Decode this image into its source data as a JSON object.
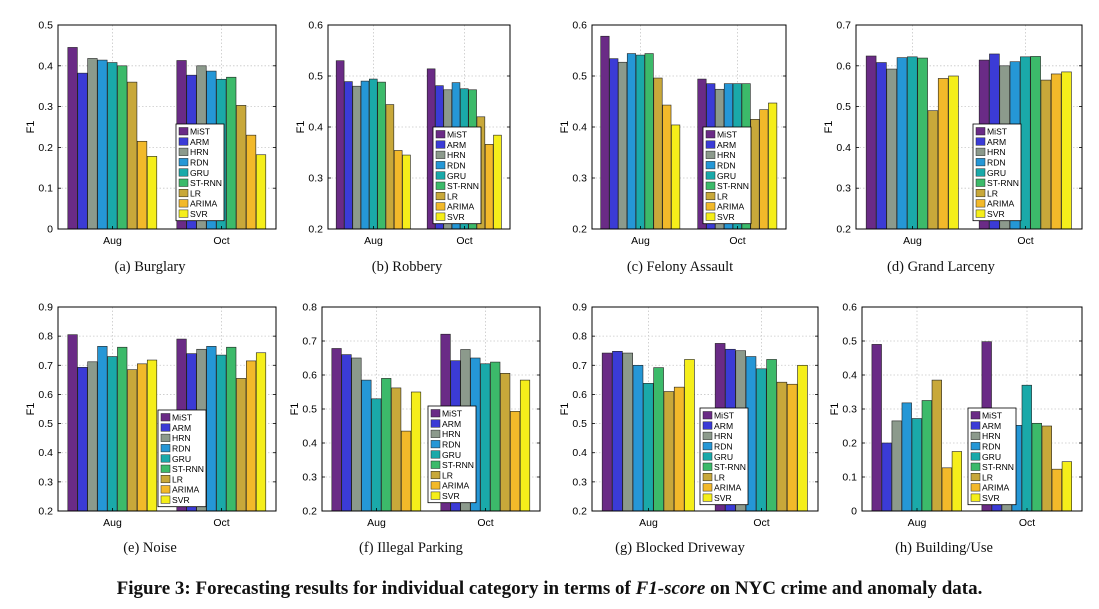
{
  "figure": {
    "caption_prefix": "Figure 3: Forecasting results for individual category in terms of ",
    "caption_metric": "F1-score",
    "caption_suffix": " on NYC crime and anomaly data."
  },
  "legend": [
    "MiST",
    "ARM",
    "HRN",
    "RDN",
    "GRU",
    "ST-RNN",
    "LR",
    "ARIMA",
    "SVR"
  ],
  "colors": [
    "#6a2b86",
    "#3b3bd6",
    "#8c9a8c",
    "#2597d6",
    "#1aa9a9",
    "#3cba6a",
    "#c8a83a",
    "#f2b92a",
    "#f5ee1a"
  ],
  "chart_data": [
    {
      "type": "bar",
      "subcaption": "(a)  Burglary",
      "ylabel": "F1",
      "ylim": [
        0,
        0.5
      ],
      "yticks": [
        0,
        0.1,
        0.2,
        0.3,
        0.4,
        0.5
      ],
      "categories": [
        "Aug",
        "Oct"
      ],
      "series": [
        {
          "name": "MiST",
          "values": [
            0.445,
            0.413
          ]
        },
        {
          "name": "ARM",
          "values": [
            0.382,
            0.377
          ]
        },
        {
          "name": "HRN",
          "values": [
            0.418,
            0.4
          ]
        },
        {
          "name": "RDN",
          "values": [
            0.414,
            0.387
          ]
        },
        {
          "name": "GRU",
          "values": [
            0.408,
            0.367
          ]
        },
        {
          "name": "ST-RNN",
          "values": [
            0.4,
            0.372
          ]
        },
        {
          "name": "LR",
          "values": [
            0.36,
            0.303
          ]
        },
        {
          "name": "ARIMA",
          "values": [
            0.215,
            0.23
          ]
        },
        {
          "name": "SVR",
          "values": [
            0.178,
            0.182
          ]
        }
      ]
    },
    {
      "type": "bar",
      "subcaption": "(b)  Robbery",
      "ylabel": "F1",
      "ylim": [
        0.2,
        0.6
      ],
      "yticks": [
        0.2,
        0.3,
        0.4,
        0.5,
        0.6
      ],
      "categories": [
        "Aug",
        "Oct"
      ],
      "series": [
        {
          "name": "MiST",
          "values": [
            0.53,
            0.514
          ]
        },
        {
          "name": "ARM",
          "values": [
            0.489,
            0.481
          ]
        },
        {
          "name": "HRN",
          "values": [
            0.48,
            0.473
          ]
        },
        {
          "name": "RDN",
          "values": [
            0.49,
            0.487
          ]
        },
        {
          "name": "GRU",
          "values": [
            0.494,
            0.475
          ]
        },
        {
          "name": "ST-RNN",
          "values": [
            0.488,
            0.473
          ]
        },
        {
          "name": "LR",
          "values": [
            0.444,
            0.42
          ]
        },
        {
          "name": "ARIMA",
          "values": [
            0.354,
            0.366
          ]
        },
        {
          "name": "SVR",
          "values": [
            0.345,
            0.384
          ]
        }
      ]
    },
    {
      "type": "bar",
      "subcaption": "(c)  Felony Assault",
      "ylabel": "F1",
      "ylim": [
        0.2,
        0.6
      ],
      "yticks": [
        0.2,
        0.3,
        0.4,
        0.5,
        0.6
      ],
      "categories": [
        "Aug",
        "Oct"
      ],
      "series": [
        {
          "name": "MiST",
          "values": [
            0.578,
            0.494
          ]
        },
        {
          "name": "ARM",
          "values": [
            0.534,
            0.485
          ]
        },
        {
          "name": "HRN",
          "values": [
            0.527,
            0.474
          ]
        },
        {
          "name": "RDN",
          "values": [
            0.544,
            0.485
          ]
        },
        {
          "name": "GRU",
          "values": [
            0.541,
            0.485
          ]
        },
        {
          "name": "ST-RNN",
          "values": [
            0.544,
            0.485
          ]
        },
        {
          "name": "LR",
          "values": [
            0.496,
            0.415
          ]
        },
        {
          "name": "ARIMA",
          "values": [
            0.443,
            0.434
          ]
        },
        {
          "name": "SVR",
          "values": [
            0.404,
            0.447
          ]
        }
      ]
    },
    {
      "type": "bar",
      "subcaption": "(d)  Grand Larceny",
      "ylabel": "F1",
      "ylim": [
        0.2,
        0.7
      ],
      "yticks": [
        0.2,
        0.3,
        0.4,
        0.5,
        0.6,
        0.7
      ],
      "categories": [
        "Aug",
        "Oct"
      ],
      "series": [
        {
          "name": "MiST",
          "values": [
            0.624,
            0.614
          ]
        },
        {
          "name": "ARM",
          "values": [
            0.608,
            0.629
          ]
        },
        {
          "name": "HRN",
          "values": [
            0.592,
            0.6
          ]
        },
        {
          "name": "RDN",
          "values": [
            0.62,
            0.61
          ]
        },
        {
          "name": "GRU",
          "values": [
            0.622,
            0.622
          ]
        },
        {
          "name": "ST-RNN",
          "values": [
            0.619,
            0.623
          ]
        },
        {
          "name": "LR",
          "values": [
            0.49,
            0.565
          ]
        },
        {
          "name": "ARIMA",
          "values": [
            0.569,
            0.58
          ]
        },
        {
          "name": "SVR",
          "values": [
            0.575,
            0.585
          ]
        }
      ]
    },
    {
      "type": "bar",
      "subcaption": "(e)  Noise",
      "ylabel": "F1",
      "ylim": [
        0.2,
        0.9
      ],
      "yticks": [
        0.2,
        0.3,
        0.4,
        0.5,
        0.6,
        0.7,
        0.8,
        0.9
      ],
      "categories": [
        "Aug",
        "Oct"
      ],
      "series": [
        {
          "name": "MiST",
          "values": [
            0.805,
            0.79
          ]
        },
        {
          "name": "ARM",
          "values": [
            0.693,
            0.74
          ]
        },
        {
          "name": "HRN",
          "values": [
            0.712,
            0.755
          ]
        },
        {
          "name": "RDN",
          "values": [
            0.765,
            0.765
          ]
        },
        {
          "name": "GRU",
          "values": [
            0.73,
            0.735
          ]
        },
        {
          "name": "ST-RNN",
          "values": [
            0.762,
            0.762
          ]
        },
        {
          "name": "LR",
          "values": [
            0.685,
            0.655
          ]
        },
        {
          "name": "ARIMA",
          "values": [
            0.705,
            0.715
          ]
        },
        {
          "name": "SVR",
          "values": [
            0.718,
            0.743
          ]
        }
      ]
    },
    {
      "type": "bar",
      "subcaption": "(f)  Illegal Parking",
      "ylabel": "F1",
      "ylim": [
        0.2,
        0.8
      ],
      "yticks": [
        0.2,
        0.3,
        0.4,
        0.5,
        0.6,
        0.7,
        0.8
      ],
      "categories": [
        "Aug",
        "Oct"
      ],
      "series": [
        {
          "name": "MiST",
          "values": [
            0.678,
            0.72
          ]
        },
        {
          "name": "ARM",
          "values": [
            0.66,
            0.642
          ]
        },
        {
          "name": "HRN",
          "values": [
            0.65,
            0.675
          ]
        },
        {
          "name": "RDN",
          "values": [
            0.585,
            0.65
          ]
        },
        {
          "name": "GRU",
          "values": [
            0.53,
            0.633
          ]
        },
        {
          "name": "ST-RNN",
          "values": [
            0.59,
            0.638
          ]
        },
        {
          "name": "LR",
          "values": [
            0.562,
            0.605
          ]
        },
        {
          "name": "ARIMA",
          "values": [
            0.435,
            0.493
          ]
        },
        {
          "name": "SVR",
          "values": [
            0.55,
            0.585
          ]
        }
      ]
    },
    {
      "type": "bar",
      "subcaption": "(g)  Blocked Driveway",
      "ylabel": "F1",
      "ylim": [
        0.2,
        0.9
      ],
      "yticks": [
        0.2,
        0.3,
        0.4,
        0.5,
        0.6,
        0.7,
        0.8,
        0.9
      ],
      "categories": [
        "Aug",
        "Oct"
      ],
      "series": [
        {
          "name": "MiST",
          "values": [
            0.742,
            0.775
          ]
        },
        {
          "name": "ARM",
          "values": [
            0.748,
            0.755
          ]
        },
        {
          "name": "HRN",
          "values": [
            0.742,
            0.75
          ]
        },
        {
          "name": "RDN",
          "values": [
            0.7,
            0.73
          ]
        },
        {
          "name": "GRU",
          "values": [
            0.638,
            0.688
          ]
        },
        {
          "name": "ST-RNN",
          "values": [
            0.692,
            0.72
          ]
        },
        {
          "name": "LR",
          "values": [
            0.61,
            0.642
          ]
        },
        {
          "name": "ARIMA",
          "values": [
            0.625,
            0.635
          ]
        },
        {
          "name": "SVR",
          "values": [
            0.72,
            0.7
          ]
        }
      ]
    },
    {
      "type": "bar",
      "subcaption": "(h)  Building/Use",
      "ylabel": "F1",
      "ylim": [
        0,
        0.6
      ],
      "yticks": [
        0,
        0.1,
        0.2,
        0.3,
        0.4,
        0.5,
        0.6
      ],
      "categories": [
        "Aug",
        "Oct"
      ],
      "series": [
        {
          "name": "MiST",
          "values": [
            0.49,
            0.498
          ]
        },
        {
          "name": "ARM",
          "values": [
            0.2,
            0.22
          ]
        },
        {
          "name": "HRN",
          "values": [
            0.265,
            0.22
          ]
        },
        {
          "name": "RDN",
          "values": [
            0.318,
            0.252
          ]
        },
        {
          "name": "GRU",
          "values": [
            0.272,
            0.37
          ]
        },
        {
          "name": "ST-RNN",
          "values": [
            0.325,
            0.258
          ]
        },
        {
          "name": "LR",
          "values": [
            0.385,
            0.25
          ]
        },
        {
          "name": "ARIMA",
          "values": [
            0.127,
            0.123
          ]
        },
        {
          "name": "SVR",
          "values": [
            0.175,
            0.145
          ]
        }
      ]
    }
  ]
}
